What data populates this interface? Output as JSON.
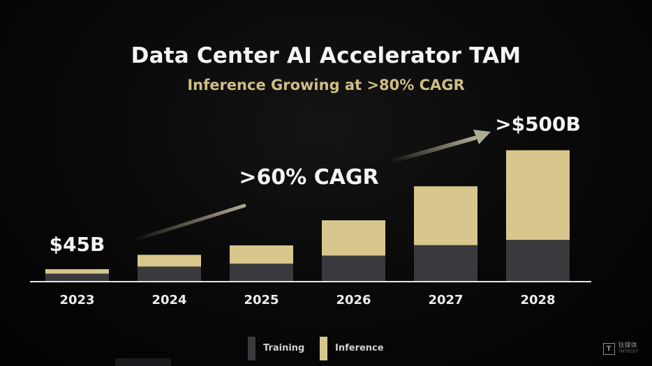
{
  "slide": {
    "title": "Data Center AI Accelerator TAM",
    "subtitle": "Inference Growing at >80% CAGR"
  },
  "colors": {
    "training": "#3a3a3e",
    "inference": "#d8c78c",
    "subtitle": "#cfbe83",
    "text": "#f4f4f4",
    "arrow": "#b8b39a"
  },
  "chart_data": {
    "type": "bar",
    "stacked": true,
    "categories": [
      "2023",
      "2024",
      "2025",
      "2026",
      "2027",
      "2028"
    ],
    "series": [
      {
        "name": "Training",
        "values": [
          28,
          55,
          66,
          97,
          137,
          157
        ]
      },
      {
        "name": "Inference",
        "values": [
          17,
          45,
          70,
          135,
          225,
          343
        ]
      }
    ],
    "ylim": [
      0,
      520
    ],
    "grid": false,
    "legend": "bottom-center",
    "annotations": [
      {
        "category": "2023",
        "text": "$45B"
      },
      {
        "category": "2028",
        "text": ">$500B"
      },
      {
        "text": ">60% CAGR"
      }
    ]
  },
  "watermark": {
    "mark": "T",
    "name": "钛媒体",
    "sub": "TMTPOST"
  }
}
